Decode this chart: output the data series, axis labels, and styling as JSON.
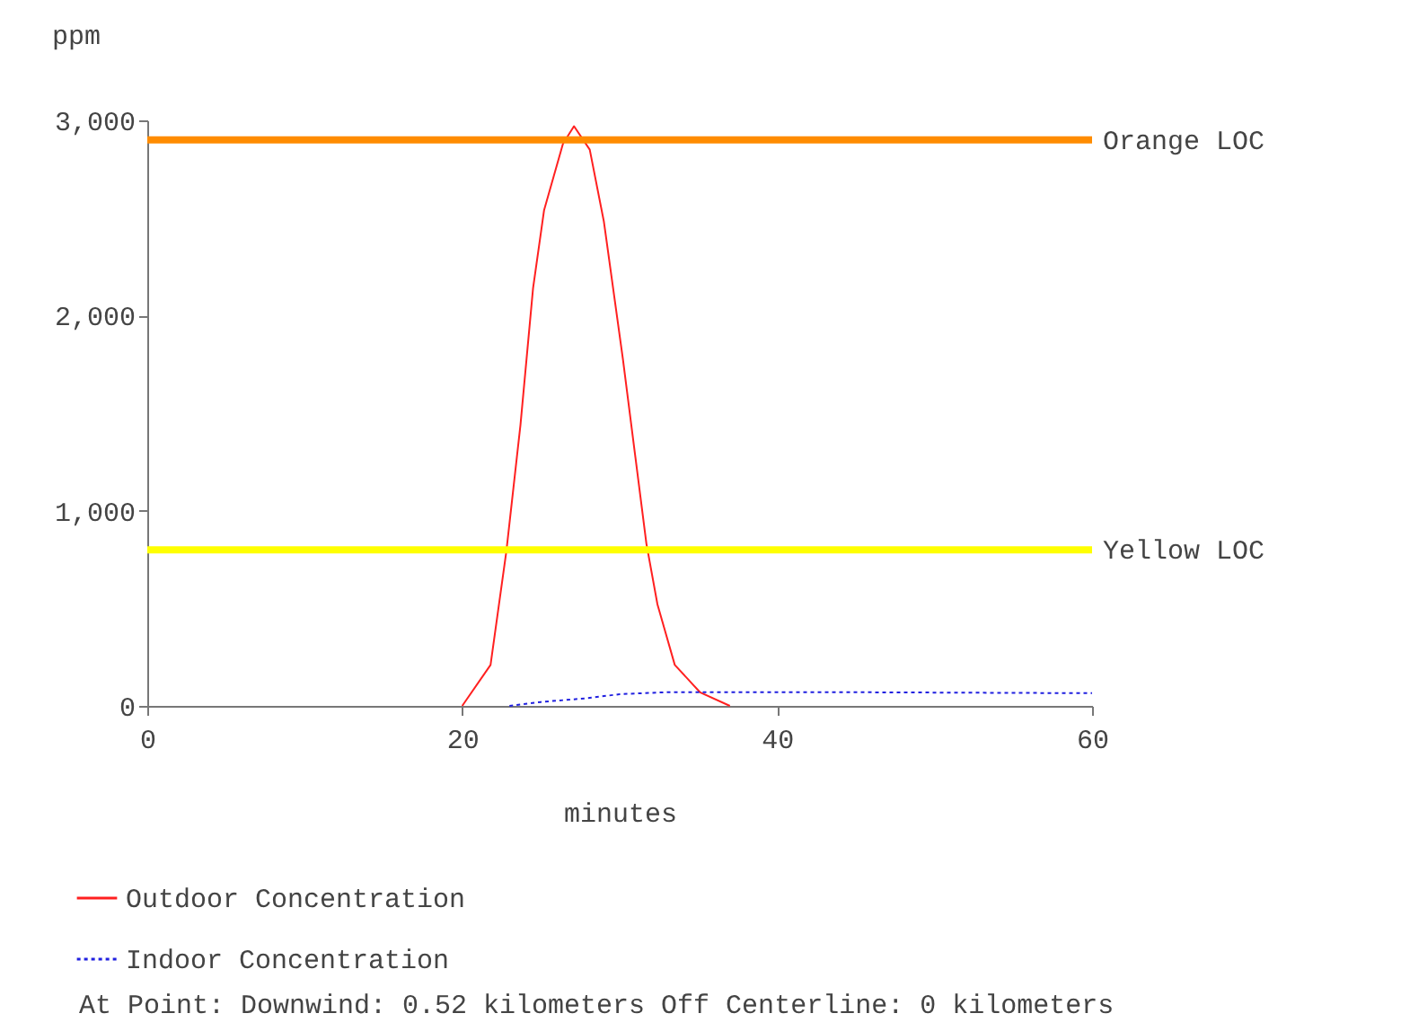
{
  "chart_data": {
    "type": "line",
    "ylabel": "ppm",
    "xlabel": "minutes",
    "xlim": [
      0,
      60
    ],
    "xticks": [
      0,
      20,
      40,
      60
    ],
    "ylim": [
      0,
      3000
    ],
    "yticks": [
      0,
      {
        "value": 1000,
        "label": "1,000"
      },
      {
        "value": 2000,
        "label": "2,000"
      },
      {
        "value": 3000,
        "label": "3,000"
      }
    ],
    "grid": false,
    "legend": "bottom",
    "marker": "none",
    "series": [
      {
        "name": "Outdoor Concentration",
        "color": "#ff2020",
        "line_style": "solid",
        "x": [
          20,
          21.8,
          22.8,
          23.7,
          24.5,
          25.2,
          26.4,
          27.1,
          28.1,
          29.0,
          30.2,
          31.7,
          32.4,
          33.5,
          35.1,
          37.0
        ],
        "values": [
          0,
          210,
          790,
          1440,
          2140,
          2540,
          2880,
          2970,
          2850,
          2480,
          1780,
          830,
          520,
          210,
          70,
          0
        ]
      },
      {
        "name": "Indoor Concentration",
        "color": "#2020e0",
        "line_style": "dotted",
        "x": [
          23,
          25,
          28,
          30,
          33,
          45,
          60
        ],
        "values": [
          0,
          20,
          40,
          60,
          70,
          70,
          65
        ]
      }
    ],
    "ref_lines": [
      {
        "axis": "y",
        "value": 2900,
        "label": "Orange LOC",
        "color": "#ff8c00"
      },
      {
        "axis": "y",
        "value": 800,
        "label": "Yellow LOC",
        "color": "#ffff00"
      }
    ],
    "annotations": [
      "At Point:   Downwind: 0.52 kilometers   Off Centerline: 0 kilometers"
    ]
  }
}
